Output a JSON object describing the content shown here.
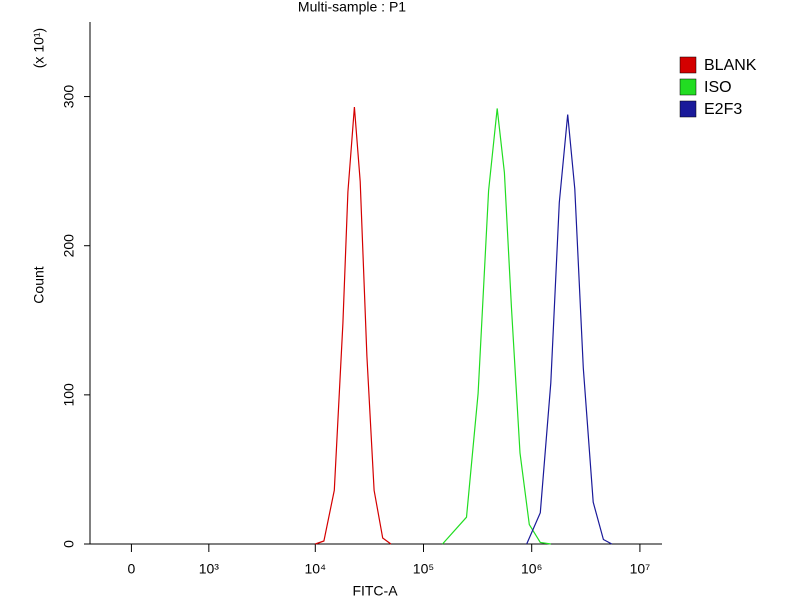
{
  "chart_data": {
    "type": "line",
    "title": "Multi-sample : P1",
    "xlabel": "FITC-A",
    "ylabel": "Count",
    "y_multiplier": "(x 10¹)",
    "xscale": "biexponential",
    "xlim": [
      -400,
      16000000
    ],
    "ylim": [
      0,
      350
    ],
    "xticks": [
      0,
      {
        "value": 1000,
        "label": "10³"
      },
      {
        "value": 10000,
        "label": "10⁴"
      },
      {
        "value": 100000,
        "label": "10⁵"
      },
      {
        "value": 1000000,
        "label": "10⁶"
      },
      {
        "value": 10000000,
        "label": "10⁷"
      }
    ],
    "yticks": [
      0,
      100,
      200,
      300
    ],
    "legend": "right",
    "series": [
      {
        "name": "BLANK",
        "color": "#d40000",
        "x": [
          10000,
          12000,
          15000,
          18000,
          20000,
          23000,
          26000,
          30000,
          35000,
          42000,
          50000
        ],
        "values": [
          0,
          2,
          36,
          148,
          236,
          293,
          243,
          126,
          36,
          4,
          0
        ]
      },
      {
        "name": "ISO",
        "color": "#22dd22",
        "x": [
          150000,
          250000,
          320000,
          400000,
          480000,
          560000,
          650000,
          780000,
          950000,
          1200000,
          1500000
        ],
        "values": [
          0,
          18,
          101,
          237,
          292,
          249,
          158,
          61,
          13,
          1,
          0
        ]
      },
      {
        "name": "E2F3",
        "color": "#1a1a9a",
        "x": [
          900000,
          1200000,
          1500000,
          1800000,
          2150000,
          2500000,
          3000000,
          3700000,
          4600000,
          5500000
        ],
        "values": [
          0,
          21,
          108,
          229,
          288,
          238,
          118,
          28,
          3,
          0
        ]
      }
    ]
  }
}
